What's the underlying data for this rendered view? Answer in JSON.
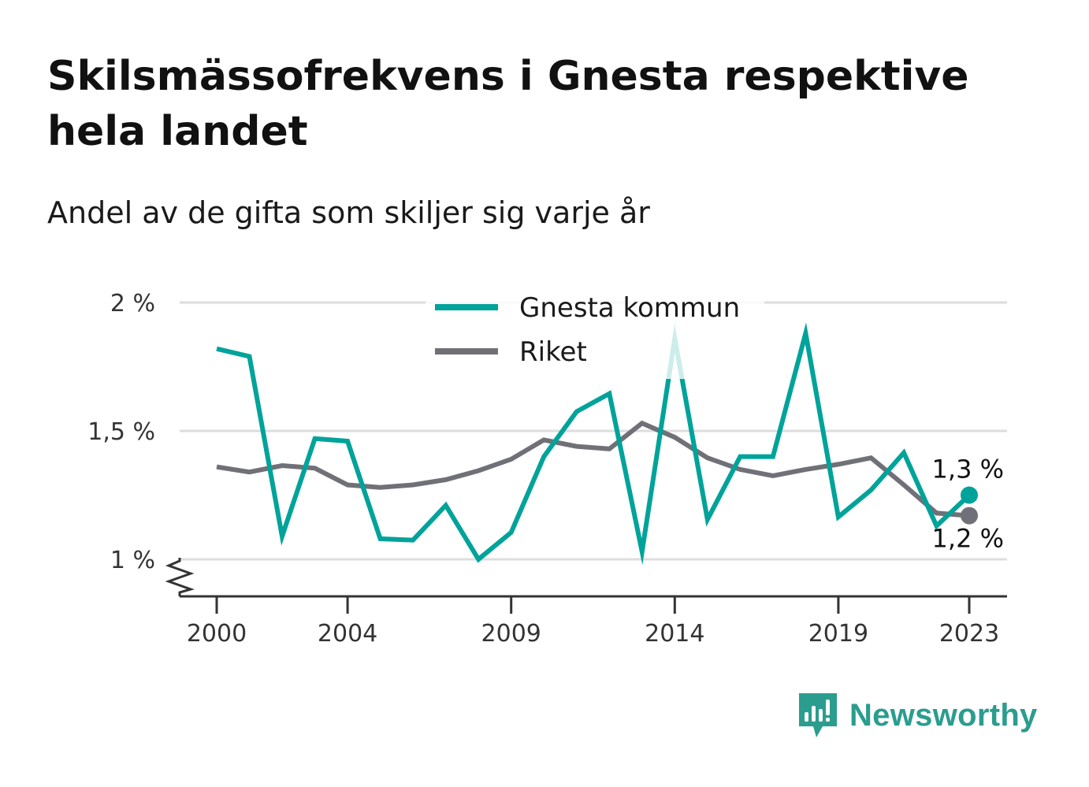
{
  "header": {
    "title": "Skilsmässofrekvens i Gnesta respektive hela landet",
    "subtitle": "Andel av de gifta som skiljer sig varje år"
  },
  "branding": {
    "logo_text": "Newsworthy"
  },
  "colors": {
    "gnesta": "#00a39a",
    "riket": "#707078",
    "grid": "#dddddd",
    "axis": "#333333",
    "brand": "#2a9d8f"
  },
  "chart_data": {
    "type": "line",
    "x": [
      2000,
      2001,
      2002,
      2003,
      2004,
      2005,
      2006,
      2007,
      2008,
      2009,
      2010,
      2011,
      2012,
      2013,
      2014,
      2015,
      2016,
      2017,
      2018,
      2019,
      2020,
      2021,
      2022,
      2023
    ],
    "x_ticks": [
      2000,
      2004,
      2009,
      2014,
      2019,
      2023
    ],
    "x_tick_labels": [
      "2000",
      "2004",
      "2009",
      "2014",
      "2019",
      "2023"
    ],
    "y_ticks": [
      1,
      1.5,
      2
    ],
    "y_tick_labels": [
      "1 %",
      "1,5 %",
      "2 %"
    ],
    "ylim": [
      0.86,
      2.0
    ],
    "y_axis_break": true,
    "grid": true,
    "legend_position": "top-center",
    "series": [
      {
        "name": "Gnesta kommun",
        "color": "#00a39a",
        "values": [
          1.82,
          1.79,
          1.09,
          1.47,
          1.46,
          1.08,
          1.075,
          1.21,
          1.0,
          1.105,
          1.4,
          1.575,
          1.645,
          1.03,
          1.86,
          1.155,
          1.4,
          1.4,
          1.88,
          1.165,
          1.27,
          1.415,
          1.13,
          1.25
        ],
        "end_label": "1,3 %"
      },
      {
        "name": "Riket",
        "color": "#707078",
        "values": [
          1.36,
          1.34,
          1.365,
          1.355,
          1.29,
          1.28,
          1.29,
          1.31,
          1.345,
          1.39,
          1.465,
          1.44,
          1.43,
          1.53,
          1.475,
          1.395,
          1.35,
          1.325,
          1.35,
          1.37,
          1.395,
          1.29,
          1.18,
          1.17
        ],
        "end_label": "1,2 %"
      }
    ]
  }
}
